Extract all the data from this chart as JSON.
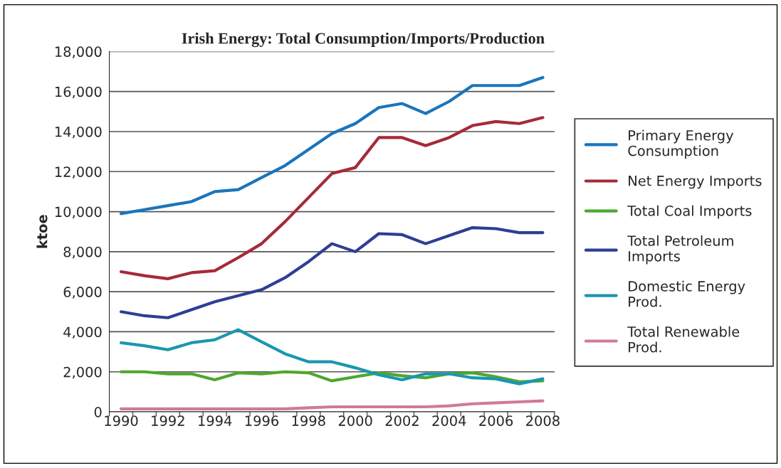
{
  "chart_data": {
    "type": "line",
    "title": "Irish Energy: Total Consumption/Imports/Production",
    "ylabel": "ktoe",
    "categories": [
      "1990",
      null,
      "1992",
      null,
      "1994",
      null,
      "1996",
      null,
      "1998",
      null,
      "2000",
      null,
      "2002",
      null,
      "2004",
      null,
      "2006",
      null,
      "2008"
    ],
    "ylim": [
      0,
      18000
    ],
    "yticks": [
      {
        "value": 0,
        "label": "0"
      },
      {
        "value": 2000,
        "label": "2,000"
      },
      {
        "value": 4000,
        "label": "4,000"
      },
      {
        "value": 6000,
        "label": "6,000"
      },
      {
        "value": 8000,
        "label": "8,000"
      },
      {
        "value": 10000,
        "label": "10,000"
      },
      {
        "value": 12000,
        "label": "12,000"
      },
      {
        "value": 14000,
        "label": "14,000"
      },
      {
        "value": 16000,
        "label": "16,000"
      },
      {
        "value": 18000,
        "label": "18,000"
      }
    ],
    "grid": "y",
    "legend": "right",
    "marker": "none",
    "line_style": "solid",
    "series": [
      {
        "name": "Primary Energy Consumption",
        "color": "#1a75bc",
        "values": [
          9900,
          10100,
          10300,
          10500,
          11000,
          11100,
          11700,
          12300,
          13100,
          13900,
          14400,
          15200,
          15400,
          14900,
          15500,
          16300,
          16300,
          16300,
          16700
        ]
      },
      {
        "name": "Net Energy Imports",
        "color": "#a52a3a",
        "values": [
          7000,
          6800,
          6650,
          6950,
          7050,
          7700,
          8400,
          9500,
          10700,
          11900,
          12200,
          13700,
          13700,
          13300,
          13700,
          14300,
          14500,
          14400,
          14700
        ]
      },
      {
        "name": "Total Coal Imports",
        "color": "#4ea72e",
        "values": [
          2000,
          2000,
          1900,
          1900,
          1600,
          1950,
          1900,
          2000,
          1950,
          1550,
          1750,
          1950,
          1800,
          1700,
          1900,
          1950,
          1750,
          1500,
          1550
        ]
      },
      {
        "name": "Total Petroleum Imports",
        "color": "#2e3e96",
        "values": [
          5000,
          4800,
          4700,
          5100,
          5500,
          5800,
          6100,
          6700,
          7500,
          8400,
          8000,
          8900,
          8850,
          8400,
          8800,
          9200,
          9150,
          8950,
          8950
        ]
      },
      {
        "name": "Domestic Energy Prod.",
        "color": "#1a97b0",
        "values": [
          3450,
          3300,
          3100,
          3450,
          3600,
          4100,
          3500,
          2900,
          2500,
          2500,
          2200,
          1850,
          1600,
          1900,
          1900,
          1700,
          1650,
          1400,
          1650
        ]
      },
      {
        "name": "Total Renewable Prod.",
        "color": "#d07a9a",
        "values": [
          150,
          150,
          150,
          150,
          150,
          150,
          150,
          150,
          200,
          250,
          250,
          250,
          250,
          250,
          300,
          400,
          450,
          500,
          550
        ]
      }
    ]
  }
}
